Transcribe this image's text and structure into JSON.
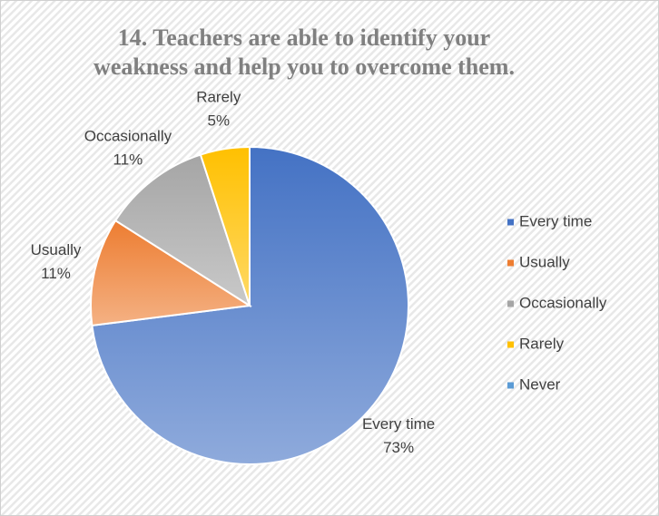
{
  "chart_data": {
    "type": "pie",
    "title": "14. Teachers are able to identify your weakness and help you to overcome them.",
    "categories": [
      "Every time",
      "Usually",
      "Occasionally",
      "Rarely",
      "Never"
    ],
    "values": [
      73,
      11,
      11,
      5,
      0
    ],
    "value_labels": [
      "73%",
      "11%",
      "11%",
      "5%",
      null
    ],
    "colors": [
      "#4472c4",
      "#ed7d31",
      "#a5a5a5",
      "#ffc000",
      "#5b9bd5"
    ],
    "legend": "right"
  }
}
